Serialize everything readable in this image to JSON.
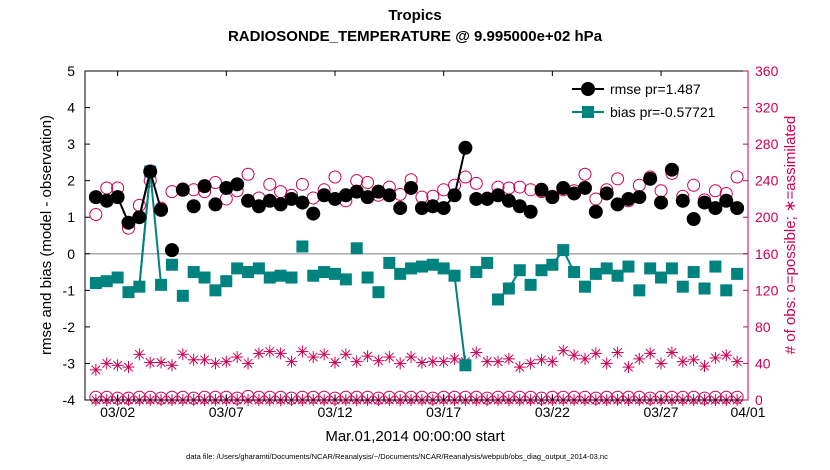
{
  "chart_data": {
    "type": "line",
    "title": "Tropics",
    "subtitle": "RADIOSONDE_TEMPERATURE @ 9.995000e+02 hPa",
    "xlabel": "Mar.01,2014 00:00:00 start",
    "ylabel_left": "rmse and bias (model - observation)",
    "ylabel_right": "# of obs: o=possible; ∗=assimilated",
    "footnote": "data file: /Users/gharamti/Documents/NCAR/Reanalysis/~/Documents/NCAR/Reanalysis/webpub/obs_diag_output_2014-03.nc",
    "xlim": [
      0.5,
      31.0
    ],
    "ylim_left": [
      -4,
      5
    ],
    "ylim_right": [
      0,
      360
    ],
    "x_ticks": [
      {
        "v": 2,
        "label": "03/02"
      },
      {
        "v": 7,
        "label": "03/07"
      },
      {
        "v": 12,
        "label": "03/12"
      },
      {
        "v": 17,
        "label": "03/17"
      },
      {
        "v": 22,
        "label": "03/22"
      },
      {
        "v": 27,
        "label": "03/27"
      },
      {
        "v": 32,
        "label": "04/01"
      }
    ],
    "y_ticks_left": [
      {
        "v": -4,
        "label": "-4"
      },
      {
        "v": -3,
        "label": "-3"
      },
      {
        "v": -2,
        "label": "-2"
      },
      {
        "v": -1,
        "label": "-1"
      },
      {
        "v": 0,
        "label": "0"
      },
      {
        "v": 1,
        "label": "1"
      },
      {
        "v": 2,
        "label": "2"
      },
      {
        "v": 3,
        "label": "3"
      },
      {
        "v": 4,
        "label": "4"
      },
      {
        "v": 5,
        "label": "5"
      }
    ],
    "y_ticks_right": [
      {
        "v": 0,
        "label": "0"
      },
      {
        "v": 40,
        "label": "40"
      },
      {
        "v": 80,
        "label": "80"
      },
      {
        "v": 120,
        "label": "120"
      },
      {
        "v": 160,
        "label": "160"
      },
      {
        "v": 200,
        "label": "200"
      },
      {
        "v": 240,
        "label": "240"
      },
      {
        "v": 280,
        "label": "280"
      },
      {
        "v": 320,
        "label": "320"
      },
      {
        "v": 360,
        "label": "360"
      }
    ],
    "zero_line": 0,
    "legend": {
      "placement": "top-right",
      "rmse_label": "rmse pr=1.487",
      "bias_label": "bias pr=-0.57721"
    },
    "colors": {
      "rmse": "#000000",
      "bias": "#00827f",
      "obs": "#cc0055",
      "zero": "#aaaaaa"
    },
    "series": [
      {
        "name": "rmse",
        "x": [
          1.0,
          1.5,
          2.0,
          2.5,
          3.0,
          3.5,
          4.0,
          4.5,
          5.0,
          5.5,
          6.0,
          6.5,
          7.0,
          7.5,
          8.0,
          8.5,
          9.0,
          9.5,
          10.0,
          10.5,
          11.0,
          11.5,
          12.0,
          12.5,
          13.0,
          13.5,
          14.0,
          14.5,
          15.0,
          15.5,
          16.0,
          16.5,
          17.0,
          17.5,
          18.0,
          18.5,
          19.0,
          19.5,
          20.0,
          20.5,
          21.0,
          21.5,
          22.0,
          22.5,
          23.0,
          23.5,
          24.0,
          24.5,
          25.0,
          25.5,
          26.0,
          26.5,
          27.0,
          27.5,
          28.0,
          28.5,
          29.0,
          29.5,
          30.0,
          30.5
        ],
        "y": [
          1.55,
          1.45,
          1.55,
          0.85,
          1.0,
          2.25,
          1.2,
          0.1,
          1.75,
          1.3,
          1.85,
          1.35,
          1.8,
          1.9,
          1.45,
          1.3,
          1.45,
          1.35,
          1.5,
          1.4,
          1.1,
          1.6,
          1.5,
          1.6,
          1.7,
          1.55,
          1.7,
          1.6,
          1.25,
          1.8,
          1.25,
          1.3,
          1.25,
          1.6,
          2.9,
          1.5,
          1.5,
          1.6,
          1.45,
          1.3,
          1.15,
          1.75,
          1.55,
          1.8,
          1.65,
          1.8,
          1.15,
          1.65,
          1.35,
          1.5,
          1.55,
          2.05,
          1.4,
          2.3,
          1.45,
          0.95,
          1.4,
          1.25,
          1.45,
          1.25
        ],
        "connected": [
          [
            1.5,
            3.5
          ],
          [
            3.0,
            4.0
          ],
          [
            17.0,
            18.0
          ],
          [
            19.5,
            20.5
          ]
        ]
      },
      {
        "name": "bias",
        "x": [
          1.0,
          1.5,
          2.0,
          2.5,
          3.0,
          3.5,
          4.0,
          4.5,
          5.0,
          5.5,
          6.0,
          6.5,
          7.0,
          7.5,
          8.0,
          8.5,
          9.0,
          9.5,
          10.0,
          10.5,
          11.0,
          11.5,
          12.0,
          12.5,
          13.0,
          13.5,
          14.0,
          14.5,
          15.0,
          15.5,
          16.0,
          16.5,
          17.0,
          17.5,
          18.0,
          18.5,
          19.0,
          19.5,
          20.0,
          20.5,
          21.0,
          21.5,
          22.0,
          22.5,
          23.0,
          23.5,
          24.0,
          24.5,
          25.0,
          25.5,
          26.0,
          26.5,
          27.0,
          27.5,
          28.0,
          28.5,
          29.0,
          29.5,
          30.0,
          30.5
        ],
        "y": [
          -0.8,
          -0.75,
          -0.65,
          -1.05,
          -0.9,
          2.25,
          -0.85,
          -0.3,
          -1.15,
          -0.5,
          -0.65,
          -1.0,
          -0.75,
          -0.4,
          -0.5,
          -0.4,
          -0.65,
          -0.6,
          -0.65,
          0.2,
          -0.6,
          -0.5,
          -0.55,
          -0.7,
          0.15,
          -0.65,
          -1.05,
          -0.25,
          -0.55,
          -0.4,
          -0.35,
          -0.3,
          -0.4,
          -0.6,
          -3.05,
          -0.5,
          -0.25,
          -1.25,
          -0.95,
          -0.45,
          -0.85,
          -0.45,
          -0.3,
          0.1,
          -0.5,
          -0.9,
          -0.55,
          -0.4,
          -0.6,
          -0.35,
          -1.0,
          -0.4,
          -0.65,
          -0.4,
          -0.9,
          -0.5,
          -0.95,
          -0.35,
          -1.0,
          -0.55
        ],
        "connected": [
          [
            2.5,
            3.5
          ],
          [
            3.0,
            4.0
          ],
          [
            17.0,
            18.0
          ],
          [
            19.5,
            20.5
          ],
          [
            22.0,
            23.0
          ]
        ]
      },
      {
        "name": "obs_possible",
        "x": [
          1.0,
          1.5,
          2.0,
          2.5,
          3.0,
          3.5,
          4.0,
          4.5,
          5.0,
          5.5,
          6.0,
          6.5,
          7.0,
          7.5,
          8.0,
          8.5,
          9.0,
          9.5,
          10.0,
          10.5,
          11.0,
          11.5,
          12.0,
          12.5,
          13.0,
          13.5,
          14.0,
          14.5,
          15.0,
          15.5,
          16.0,
          16.5,
          17.0,
          17.5,
          18.0,
          18.5,
          19.0,
          19.5,
          20.0,
          20.5,
          21.0,
          21.5,
          22.0,
          22.5,
          23.0,
          23.5,
          24.0,
          24.5,
          25.0,
          25.5,
          26.0,
          26.5,
          27.0,
          27.5,
          28.0,
          28.5,
          29.0,
          29.5,
          30.0,
          30.5
        ],
        "y": [
          203,
          232,
          232,
          188,
          213,
          240,
          210,
          228,
          231,
          230,
          228,
          238,
          220,
          229,
          247,
          221,
          236,
          228,
          224,
          236,
          221,
          230,
          244,
          218,
          240,
          238,
          224,
          233,
          225,
          241,
          222,
          223,
          230,
          235,
          244,
          237,
          221,
          233,
          232,
          233,
          230,
          228,
          223,
          230,
          229,
          247,
          220,
          230,
          242,
          218,
          235,
          244,
          229,
          248,
          223,
          235,
          219,
          229,
          226,
          244
        ],
        "near_zero": [
          3,
          3,
          2,
          2,
          3,
          3,
          2,
          3,
          3,
          2,
          3,
          3,
          3,
          2,
          4,
          3,
          3,
          3,
          2,
          3,
          3,
          3,
          2,
          3,
          3,
          3,
          2,
          3,
          3,
          3,
          3,
          2,
          3,
          3,
          3,
          3,
          2,
          3,
          3,
          3,
          3,
          2,
          3,
          3,
          3,
          3,
          2,
          3,
          3,
          3,
          3,
          2,
          3,
          3,
          3,
          3,
          2,
          3,
          3,
          3
        ]
      },
      {
        "name": "obs_assimilated",
        "x": [
          1.0,
          1.5,
          2.0,
          2.5,
          3.0,
          3.5,
          4.0,
          4.5,
          5.0,
          5.5,
          6.0,
          6.5,
          7.0,
          7.5,
          8.0,
          8.5,
          9.0,
          9.5,
          10.0,
          10.5,
          11.0,
          11.5,
          12.0,
          12.5,
          13.0,
          13.5,
          14.0,
          14.5,
          15.0,
          15.5,
          16.0,
          16.5,
          17.0,
          17.5,
          18.0,
          18.5,
          19.0,
          19.5,
          20.0,
          20.5,
          21.0,
          21.5,
          22.0,
          22.5,
          23.0,
          23.5,
          24.0,
          24.5,
          25.0,
          25.5,
          26.0,
          26.5,
          27.0,
          27.5,
          28.0,
          28.5,
          29.0,
          29.5,
          30.0,
          30.5
        ],
        "y": [
          33,
          40,
          38,
          36,
          50,
          41,
          41,
          38,
          50,
          44,
          44,
          40,
          42,
          47,
          40,
          51,
          53,
          51,
          42,
          53,
          47,
          50,
          41,
          50,
          42,
          48,
          43,
          47,
          40,
          47,
          41,
          42,
          42,
          45,
          42,
          52,
          42,
          42,
          45,
          36,
          40,
          44,
          42,
          54,
          49,
          45,
          51,
          40,
          52,
          36,
          45,
          51,
          40,
          52,
          42,
          44,
          37,
          46,
          49,
          42
        ],
        "near_zero": [
          0,
          0,
          0,
          0,
          0,
          0,
          0,
          0,
          0,
          0,
          0,
          0,
          0,
          0,
          0,
          0,
          0,
          0,
          0,
          0,
          0,
          0,
          0,
          0,
          0,
          0,
          0,
          0,
          0,
          0,
          0,
          0,
          0,
          0,
          0,
          0,
          0,
          0,
          0,
          0,
          0,
          0,
          0,
          0,
          0,
          0,
          0,
          0,
          0,
          0,
          0,
          0,
          0,
          0,
          0,
          0,
          0,
          0,
          0,
          0
        ]
      }
    ]
  }
}
